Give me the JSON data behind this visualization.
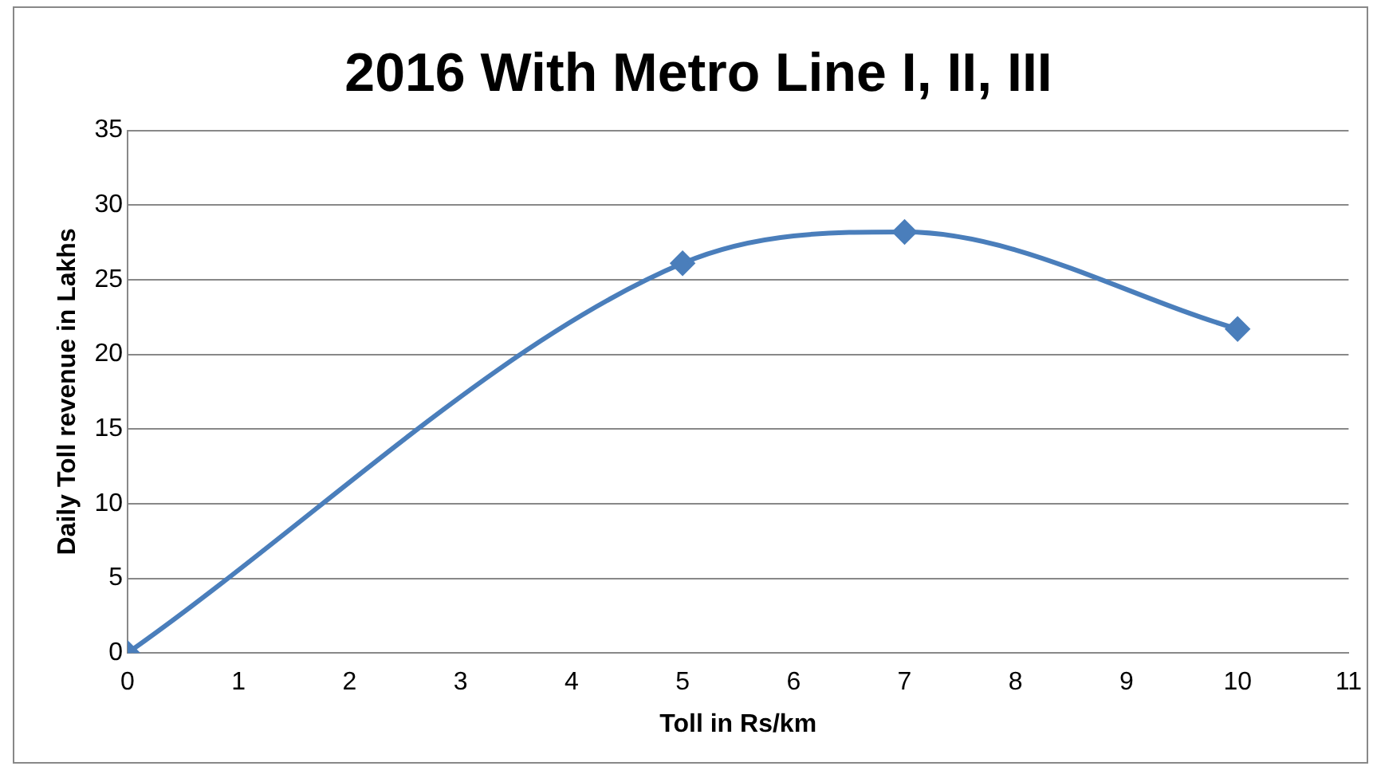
{
  "chart_data": {
    "type": "line",
    "title": "2016 With Metro Line I, II, III",
    "xlabel": "Toll in Rs/km",
    "ylabel": "Daily Toll revenue in Lakhs",
    "x": [
      0,
      5,
      7,
      10
    ],
    "series": [
      {
        "color": "#4a7ebb",
        "values": [
          0,
          26.1,
          28.2,
          21.7
        ]
      }
    ],
    "xlim": [
      0,
      11
    ],
    "xticks": [
      0,
      1,
      2,
      3,
      4,
      5,
      6,
      7,
      8,
      9,
      10,
      11
    ],
    "ylim": [
      0,
      35
    ],
    "yticks": [
      0,
      5,
      10,
      15,
      20,
      25,
      30,
      35
    ],
    "grid": "y",
    "legend": false,
    "marker": "diamond",
    "line_style": "solid"
  }
}
